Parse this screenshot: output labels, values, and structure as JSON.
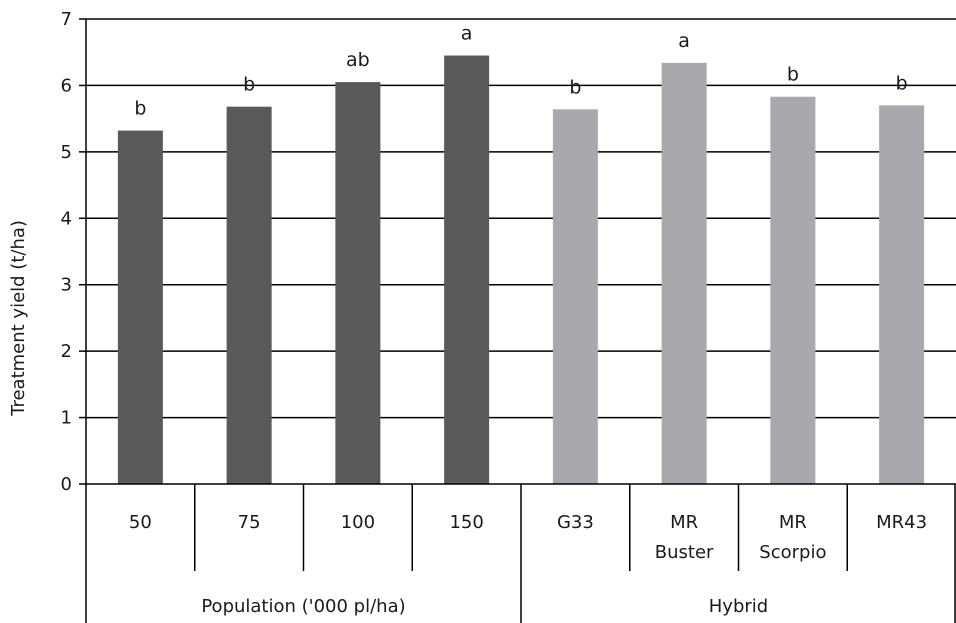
{
  "chart_data": {
    "type": "bar",
    "ylabel": "Treatment yield (t/ha)",
    "ylim": [
      0,
      7
    ],
    "yticks": [
      "0",
      "1",
      "2",
      "3",
      "4",
      "5",
      "6",
      "7"
    ],
    "grid": true,
    "categories": [
      {
        "label_lines": [
          "50"
        ],
        "value": 5.32,
        "letter": "b",
        "group": 0
      },
      {
        "label_lines": [
          "75"
        ],
        "value": 5.68,
        "letter": "b",
        "group": 0
      },
      {
        "label_lines": [
          "100"
        ],
        "value": 6.05,
        "letter": "ab",
        "group": 0
      },
      {
        "label_lines": [
          "150"
        ],
        "value": 6.45,
        "letter": "a",
        "group": 0
      },
      {
        "label_lines": [
          "G33"
        ],
        "value": 5.64,
        "letter": "b",
        "group": 1
      },
      {
        "label_lines": [
          "MR",
          "Buster"
        ],
        "value": 6.34,
        "letter": "a",
        "group": 1
      },
      {
        "label_lines": [
          "MR",
          "Scorpio"
        ],
        "value": 5.83,
        "letter": "b",
        "group": 1
      },
      {
        "label_lines": [
          "MR43"
        ],
        "value": 5.7,
        "letter": "b",
        "group": 1
      }
    ],
    "groups": [
      {
        "label": "Population ('000 pl/ha)",
        "color": "#58595b"
      },
      {
        "label": "Hybrid",
        "color": "#a7a9ac"
      }
    ]
  }
}
